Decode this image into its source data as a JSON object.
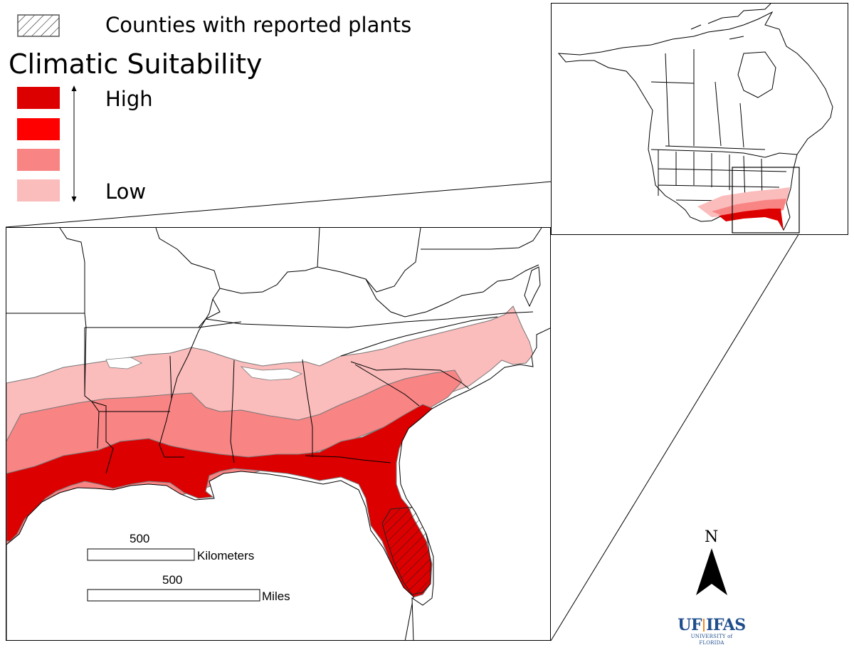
{
  "legend": {
    "hatch_label": "Counties with reported plants",
    "title": "Climatic Suitability",
    "high_label": "High",
    "low_label": "Low",
    "classes": [
      {
        "level": 4,
        "color": "#dd0000"
      },
      {
        "level": 3,
        "color": "#ff0000"
      },
      {
        "level": 2,
        "color": "#f88484"
      },
      {
        "level": 1,
        "color": "#fbbcbc"
      }
    ]
  },
  "scale_bars": {
    "km": {
      "value": "500",
      "unit": "Kilometers"
    },
    "mi": {
      "value": "500",
      "unit": "Miles"
    }
  },
  "north_arrow": {
    "label": "N"
  },
  "logo": {
    "top_left": "UF",
    "top_right": "IFAS",
    "bottom": "UNIVERSITY of FLORIDA"
  },
  "colors": {
    "high": "#dd0000",
    "medium_high": "#ff0000",
    "medium_low": "#f88484",
    "low": "#fbbcbc",
    "border": "#000000",
    "zone_edge": "#777777"
  }
}
